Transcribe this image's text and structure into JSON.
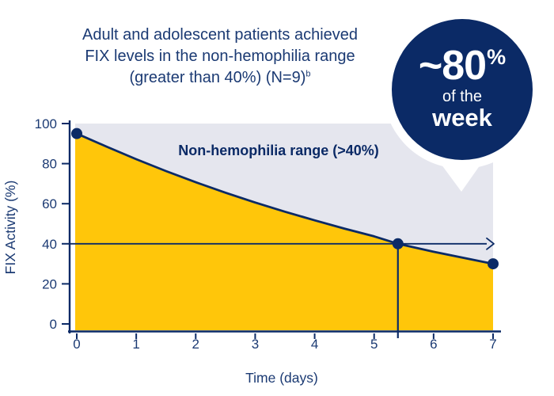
{
  "title": {
    "line1": "Adult and adolescent patients achieved",
    "line2": "FIX levels in the non-hemophilia range",
    "line3": "(greater than 40%) (N=9)",
    "superscript": "b"
  },
  "badge": {
    "value": "~80",
    "percent_sign": "%",
    "line2": "of the",
    "line3": "week",
    "bg_color": "#0b2a66",
    "text_color": "#ffffff"
  },
  "chart_data": {
    "type": "area",
    "xlabel": "Time (days)",
    "ylabel": "FIX Activity (%)",
    "xlim": [
      0,
      7
    ],
    "ylim": [
      0,
      100
    ],
    "x_ticks": [
      0,
      1,
      2,
      3,
      4,
      5,
      6,
      7
    ],
    "y_ticks": [
      0,
      20,
      40,
      60,
      80,
      100
    ],
    "grid": false,
    "legend": false,
    "series": [
      {
        "name": "FIX Activity",
        "x": [
          0,
          0.5,
          1,
          1.5,
          2,
          2.5,
          3,
          3.5,
          4,
          4.5,
          5,
          5.4,
          6,
          6.5,
          7
        ],
        "y": [
          95,
          88.5,
          82.2,
          76.3,
          70.7,
          65.5,
          60.6,
          56.0,
          51.7,
          47.6,
          43.7,
          40.0,
          36.0,
          33.0,
          30.0
        ]
      }
    ],
    "threshold": {
      "value": 40,
      "label": "Non-hemophilia range (>40%)",
      "crossing_x": 5.4,
      "arrow": "right"
    },
    "markers": [
      {
        "x": 0,
        "y": 95
      },
      {
        "x": 5.4,
        "y": 40
      },
      {
        "x": 7,
        "y": 30
      }
    ],
    "colors": {
      "under_curve": "#ffc60a",
      "above_curve": "#e5e6ee",
      "line": "#0b2a66",
      "text": "#1b3a73"
    }
  }
}
